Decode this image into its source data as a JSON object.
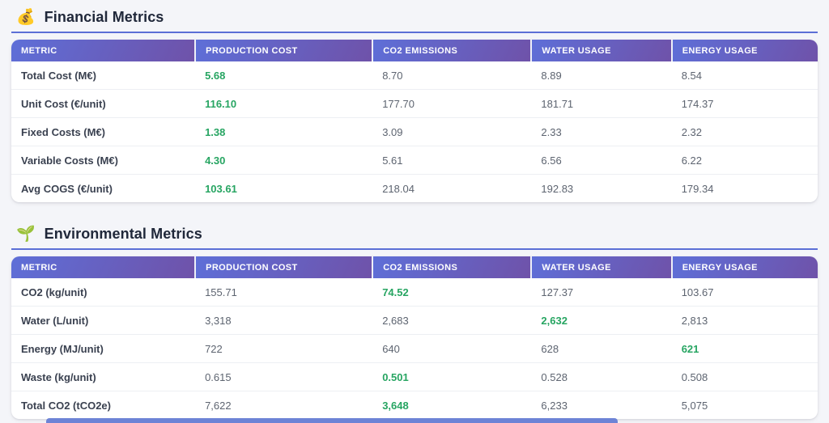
{
  "colors": {
    "page_bg": "#f4f5f9",
    "header_grad_start": "#5e6fd8",
    "header_grad_end": "#6f52a9",
    "underline": "#5b6fd6",
    "title_color": "#20283a",
    "metric_color": "#3a4150",
    "value_color": "#5d6470",
    "best_color": "#27a562",
    "row_border": "#edeff3"
  },
  "sections": [
    {
      "icon": "💰",
      "icon_name": "money-bag-icon",
      "title": "Financial Metrics",
      "columns": [
        "METRIC",
        "PRODUCTION COST",
        "CO2 EMISSIONS",
        "WATER USAGE",
        "ENERGY USAGE"
      ],
      "rows": [
        {
          "metric": "Total Cost (M€)",
          "values": [
            "5.68",
            "8.70",
            "8.89",
            "8.54"
          ],
          "highlight": 0
        },
        {
          "metric": "Unit Cost (€/unit)",
          "values": [
            "116.10",
            "177.70",
            "181.71",
            "174.37"
          ],
          "highlight": 0
        },
        {
          "metric": "Fixed Costs (M€)",
          "values": [
            "1.38",
            "3.09",
            "2.33",
            "2.32"
          ],
          "highlight": 0
        },
        {
          "metric": "Variable Costs (M€)",
          "values": [
            "4.30",
            "5.61",
            "6.56",
            "6.22"
          ],
          "highlight": 0
        },
        {
          "metric": "Avg COGS (€/unit)",
          "values": [
            "103.61",
            "218.04",
            "192.83",
            "179.34"
          ],
          "highlight": 0
        }
      ]
    },
    {
      "icon": "🌱",
      "icon_name": "seedling-icon",
      "title": "Environmental Metrics",
      "columns": [
        "METRIC",
        "PRODUCTION COST",
        "CO2 EMISSIONS",
        "WATER USAGE",
        "ENERGY USAGE"
      ],
      "rows": [
        {
          "metric": "CO2 (kg/unit)",
          "values": [
            "155.71",
            "74.52",
            "127.37",
            "103.67"
          ],
          "highlight": 1
        },
        {
          "metric": "Water (L/unit)",
          "values": [
            "3,318",
            "2,683",
            "2,632",
            "2,813"
          ],
          "highlight": 2
        },
        {
          "metric": "Energy (MJ/unit)",
          "values": [
            "722",
            "640",
            "628",
            "621"
          ],
          "highlight": 3
        },
        {
          "metric": "Waste (kg/unit)",
          "values": [
            "0.615",
            "0.501",
            "0.528",
            "0.508"
          ],
          "highlight": 1
        },
        {
          "metric": "Total CO2 (tCO2e)",
          "values": [
            "7,622",
            "3,648",
            "6,233",
            "5,075"
          ],
          "highlight": 1
        }
      ]
    }
  ]
}
